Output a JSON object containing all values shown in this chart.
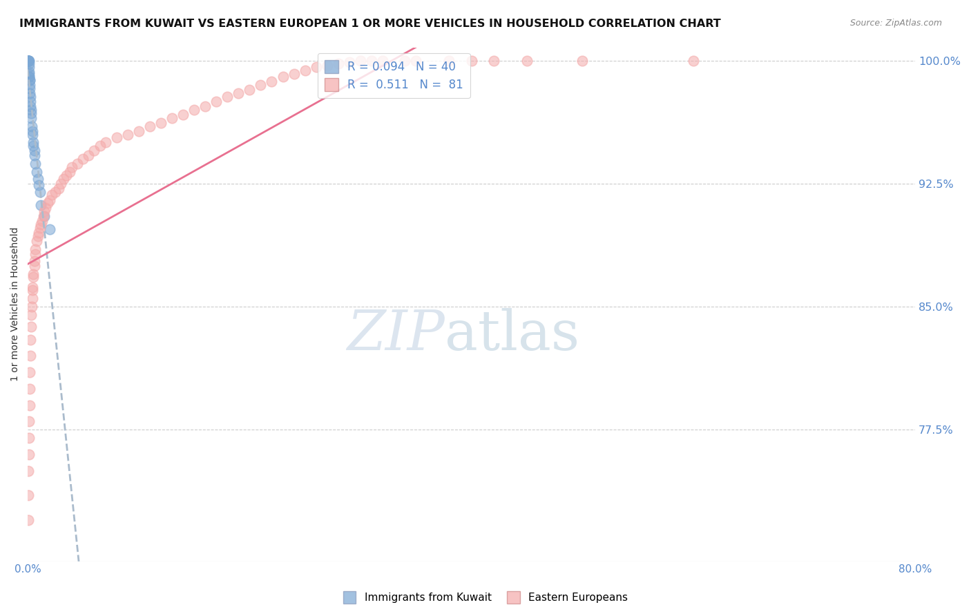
{
  "title": "IMMIGRANTS FROM KUWAIT VS EASTERN EUROPEAN 1 OR MORE VEHICLES IN HOUSEHOLD CORRELATION CHART",
  "source": "Source: ZipAtlas.com",
  "ylabel": "1 or more Vehicles in Household",
  "kuwait_color": "#7BA7D4",
  "eastern_color": "#F4AAAA",
  "kuwait_line_color": "#AABBCC",
  "eastern_line_color": "#E87090",
  "watermark_zip": "ZIP",
  "watermark_atlas": "atlas",
  "watermark_color_zip": "#C8D8E8",
  "watermark_color_atlas": "#B0C8D8",
  "title_fontsize": 11.5,
  "source_fontsize": 9,
  "legend_fontsize": 12,
  "axis_color": "#5588CC",
  "axis_tick_color": "#5588CC",
  "xmin": 0.0,
  "xmax": 0.8,
  "ymin": 0.695,
  "ymax": 1.008,
  "kuwait_R": 0.094,
  "kuwait_N": 40,
  "eastern_R": 0.511,
  "eastern_N": 81,
  "kuwait_x": [
    0.0003,
    0.0003,
    0.0004,
    0.0005,
    0.0005,
    0.0006,
    0.0008,
    0.0009,
    0.001,
    0.001,
    0.0012,
    0.0013,
    0.0013,
    0.0014,
    0.0015,
    0.0016,
    0.0018,
    0.002,
    0.002,
    0.0022,
    0.0024,
    0.0025,
    0.003,
    0.003,
    0.0032,
    0.0035,
    0.004,
    0.004,
    0.005,
    0.005,
    0.006,
    0.006,
    0.007,
    0.008,
    0.009,
    0.01,
    0.011,
    0.012,
    0.015,
    0.02
  ],
  "kuwait_y": [
    1.0,
    1.0,
    1.0,
    1.0,
    1.0,
    1.0,
    1.0,
    1.0,
    0.998,
    0.996,
    0.993,
    0.992,
    0.99,
    0.99,
    0.988,
    0.988,
    0.985,
    0.983,
    0.98,
    0.978,
    0.975,
    0.972,
    0.97,
    0.968,
    0.965,
    0.96,
    0.957,
    0.955,
    0.95,
    0.948,
    0.945,
    0.942,
    0.937,
    0.932,
    0.928,
    0.924,
    0.92,
    0.912,
    0.905,
    0.897
  ],
  "eastern_x": [
    0.0003,
    0.0005,
    0.0008,
    0.001,
    0.0012,
    0.0014,
    0.0016,
    0.0018,
    0.002,
    0.0022,
    0.0025,
    0.003,
    0.003,
    0.0035,
    0.004,
    0.004,
    0.0045,
    0.005,
    0.005,
    0.006,
    0.006,
    0.007,
    0.007,
    0.008,
    0.009,
    0.01,
    0.011,
    0.012,
    0.013,
    0.014,
    0.015,
    0.016,
    0.018,
    0.02,
    0.022,
    0.025,
    0.028,
    0.03,
    0.032,
    0.035,
    0.038,
    0.04,
    0.045,
    0.05,
    0.055,
    0.06,
    0.065,
    0.07,
    0.08,
    0.09,
    0.1,
    0.11,
    0.12,
    0.13,
    0.14,
    0.15,
    0.16,
    0.17,
    0.18,
    0.19,
    0.2,
    0.21,
    0.22,
    0.23,
    0.24,
    0.25,
    0.26,
    0.27,
    0.28,
    0.29,
    0.3,
    0.31,
    0.32,
    0.34,
    0.35,
    0.38,
    0.4,
    0.42,
    0.45,
    0.5,
    0.6
  ],
  "eastern_y": [
    0.72,
    0.735,
    0.75,
    0.76,
    0.77,
    0.78,
    0.79,
    0.8,
    0.81,
    0.82,
    0.83,
    0.838,
    0.845,
    0.85,
    0.855,
    0.86,
    0.862,
    0.868,
    0.87,
    0.875,
    0.878,
    0.882,
    0.885,
    0.89,
    0.893,
    0.895,
    0.898,
    0.9,
    0.902,
    0.905,
    0.908,
    0.91,
    0.913,
    0.915,
    0.918,
    0.92,
    0.922,
    0.925,
    0.928,
    0.93,
    0.932,
    0.935,
    0.937,
    0.94,
    0.942,
    0.945,
    0.948,
    0.95,
    0.953,
    0.955,
    0.957,
    0.96,
    0.962,
    0.965,
    0.967,
    0.97,
    0.972,
    0.975,
    0.978,
    0.98,
    0.982,
    0.985,
    0.987,
    0.99,
    0.992,
    0.994,
    0.996,
    0.997,
    0.998,
    0.999,
    1.0,
    1.0,
    1.0,
    1.0,
    1.0,
    1.0,
    1.0,
    1.0,
    1.0,
    1.0,
    1.0
  ]
}
